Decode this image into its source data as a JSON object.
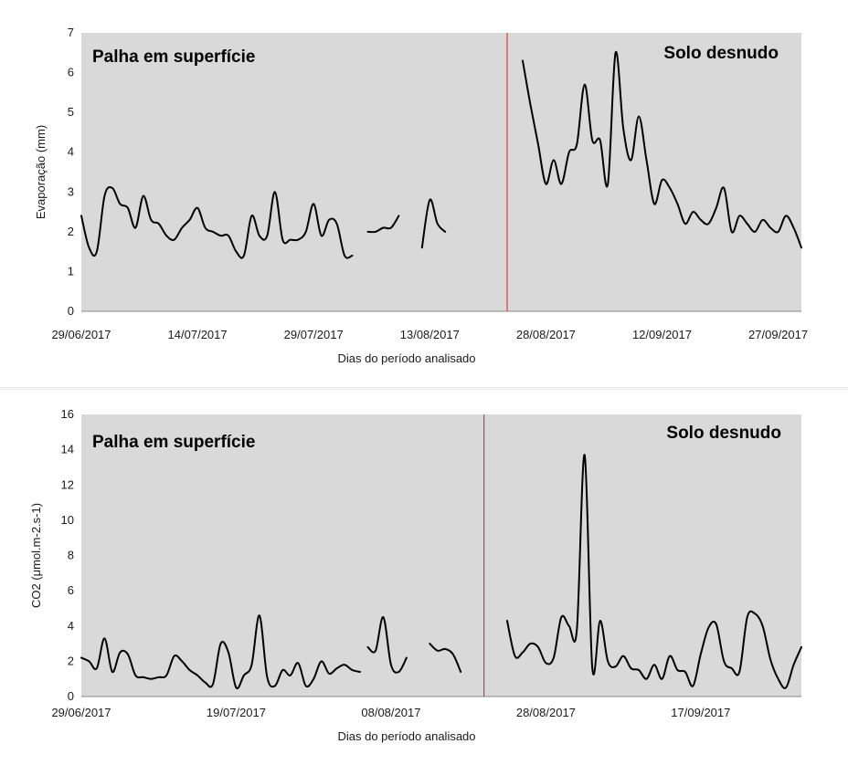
{
  "colors": {
    "plot_bg": "#d9d9d9",
    "line": "#000000",
    "divider": "#e03c3c",
    "axis": "#888888"
  },
  "chart_data": [
    {
      "type": "line",
      "ylabel": "Evaporação (mm)",
      "xlabel": "Dias do período analisado",
      "ylim": [
        0,
        7
      ],
      "yticks": [
        0,
        1,
        2,
        3,
        4,
        5,
        6,
        7
      ],
      "xlim": [
        "2017-06-29",
        "2017-09-30"
      ],
      "xtick_dates": [
        "2017-06-29",
        "2017-07-14",
        "2017-07-29",
        "2017-08-13",
        "2017-08-28",
        "2017-09-12",
        "2017-09-27"
      ],
      "xtick_labels": [
        "29/06/2017",
        "14/07/2017",
        "29/07/2017",
        "13/08/2017",
        "28/08/2017",
        "12/09/2017",
        "27/09/2017"
      ],
      "divider_date": "2017-08-23",
      "regions": {
        "left": "Palha em superfície",
        "right": "Solo desnudo"
      },
      "grid": false,
      "legend": "none",
      "segments": [
        {
          "x": [
            "2017-06-29",
            "2017-06-30",
            "2017-07-01",
            "2017-07-02",
            "2017-07-03",
            "2017-07-04",
            "2017-07-05",
            "2017-07-06",
            "2017-07-07",
            "2017-07-08",
            "2017-07-09",
            "2017-07-10",
            "2017-07-11",
            "2017-07-12",
            "2017-07-13",
            "2017-07-14",
            "2017-07-15",
            "2017-07-16",
            "2017-07-17",
            "2017-07-18",
            "2017-07-19",
            "2017-07-20",
            "2017-07-21",
            "2017-07-22",
            "2017-07-23",
            "2017-07-24",
            "2017-07-25",
            "2017-07-26",
            "2017-07-27",
            "2017-07-28",
            "2017-07-29",
            "2017-07-30",
            "2017-07-31",
            "2017-08-01",
            "2017-08-02",
            "2017-08-03"
          ],
          "y": [
            2.4,
            1.6,
            1.5,
            2.9,
            3.1,
            2.7,
            2.6,
            2.1,
            2.9,
            2.3,
            2.2,
            1.9,
            1.8,
            2.1,
            2.3,
            2.6,
            2.1,
            2.0,
            1.9,
            1.9,
            1.5,
            1.4,
            2.4,
            1.9,
            1.9,
            3.0,
            1.8,
            1.8,
            1.8,
            2.0,
            2.7,
            1.9,
            2.3,
            2.2,
            1.4,
            1.4
          ]
        },
        {
          "x": [
            "2017-08-05",
            "2017-08-06",
            "2017-08-07",
            "2017-08-08",
            "2017-08-09"
          ],
          "y": [
            2.0,
            2.0,
            2.1,
            2.1,
            2.4
          ]
        },
        {
          "x": [
            "2017-08-12",
            "2017-08-13",
            "2017-08-14",
            "2017-08-15"
          ],
          "y": [
            1.6,
            2.8,
            2.2,
            2.0
          ]
        },
        {
          "x": [
            "2017-08-25",
            "2017-08-26",
            "2017-08-27",
            "2017-08-28",
            "2017-08-29",
            "2017-08-30",
            "2017-08-31",
            "2017-09-01",
            "2017-09-02",
            "2017-09-03",
            "2017-09-04",
            "2017-09-05",
            "2017-09-06",
            "2017-09-07",
            "2017-09-08",
            "2017-09-09",
            "2017-09-10",
            "2017-09-11",
            "2017-09-12",
            "2017-09-13",
            "2017-09-14",
            "2017-09-15",
            "2017-09-16",
            "2017-09-17",
            "2017-09-18",
            "2017-09-19",
            "2017-09-20",
            "2017-09-21",
            "2017-09-22",
            "2017-09-23",
            "2017-09-24",
            "2017-09-25",
            "2017-09-26",
            "2017-09-27",
            "2017-09-28",
            "2017-09-29",
            "2017-09-30"
          ],
          "y": [
            6.3,
            5.2,
            4.2,
            3.2,
            3.8,
            3.2,
            4.0,
            4.2,
            5.7,
            4.3,
            4.3,
            3.2,
            6.5,
            4.6,
            3.8,
            4.9,
            3.8,
            2.7,
            3.3,
            3.1,
            2.7,
            2.2,
            2.5,
            2.3,
            2.2,
            2.6,
            3.1,
            2.0,
            2.4,
            2.2,
            2.0,
            2.3,
            2.1,
            2.0,
            2.4,
            2.1,
            1.6
          ]
        }
      ]
    },
    {
      "type": "line",
      "ylabel": "CO2 (μmol.m-2.s-1)",
      "xlabel": "Dias do período analisado",
      "ylim": [
        0,
        16
      ],
      "yticks": [
        0,
        2,
        4,
        6,
        8,
        10,
        12,
        14,
        16
      ],
      "xlim": [
        "2017-06-29",
        "2017-09-30"
      ],
      "xtick_dates": [
        "2017-06-29",
        "2017-07-19",
        "2017-08-08",
        "2017-08-28",
        "2017-09-17"
      ],
      "xtick_labels": [
        "29/06/2017",
        "19/07/2017",
        "08/08/2017",
        "28/08/2017",
        "17/09/2017"
      ],
      "divider_date": "2017-08-20",
      "regions": {
        "left": "Palha em superfície",
        "right": "Solo desnudo"
      },
      "grid": false,
      "legend": "none",
      "segments": [
        {
          "x": [
            "2017-06-29",
            "2017-06-30",
            "2017-07-01",
            "2017-07-02",
            "2017-07-03",
            "2017-07-04",
            "2017-07-05",
            "2017-07-06",
            "2017-07-07",
            "2017-07-08",
            "2017-07-09",
            "2017-07-10",
            "2017-07-11",
            "2017-07-12",
            "2017-07-13",
            "2017-07-14",
            "2017-07-15",
            "2017-07-16",
            "2017-07-17",
            "2017-07-18",
            "2017-07-19",
            "2017-07-20",
            "2017-07-21",
            "2017-07-22",
            "2017-07-23",
            "2017-07-24",
            "2017-07-25",
            "2017-07-26",
            "2017-07-27",
            "2017-07-28",
            "2017-07-29",
            "2017-07-30",
            "2017-07-31",
            "2017-08-01",
            "2017-08-02",
            "2017-08-03",
            "2017-08-04"
          ],
          "y": [
            2.2,
            2.0,
            1.6,
            3.3,
            1.4,
            2.5,
            2.4,
            1.2,
            1.1,
            1.0,
            1.1,
            1.2,
            2.3,
            2.0,
            1.5,
            1.2,
            0.8,
            0.7,
            3.0,
            2.5,
            0.5,
            1.2,
            1.8,
            4.6,
            1.1,
            0.6,
            1.5,
            1.2,
            1.9,
            0.6,
            1.0,
            2.0,
            1.3,
            1.6,
            1.8,
            1.5,
            1.4
          ]
        },
        {
          "x": [
            "2017-08-05",
            "2017-08-06",
            "2017-08-07",
            "2017-08-08",
            "2017-08-09",
            "2017-08-10"
          ],
          "y": [
            2.8,
            2.6,
            4.5,
            1.8,
            1.4,
            2.2
          ]
        },
        {
          "x": [
            "2017-08-13",
            "2017-08-14",
            "2017-08-15",
            "2017-08-16",
            "2017-08-17"
          ],
          "y": [
            3.0,
            2.6,
            2.7,
            2.4,
            1.4
          ]
        },
        {
          "x": [
            "2017-08-23",
            "2017-08-24",
            "2017-08-25",
            "2017-08-26",
            "2017-08-27",
            "2017-08-28",
            "2017-08-29",
            "2017-08-30",
            "2017-08-31",
            "2017-09-01",
            "2017-09-02",
            "2017-09-03",
            "2017-09-04",
            "2017-09-05",
            "2017-09-06",
            "2017-09-07",
            "2017-09-08",
            "2017-09-09",
            "2017-09-10",
            "2017-09-11",
            "2017-09-12",
            "2017-09-13",
            "2017-09-14",
            "2017-09-15",
            "2017-09-16",
            "2017-09-17",
            "2017-09-18",
            "2017-09-19",
            "2017-09-20",
            "2017-09-21",
            "2017-09-22",
            "2017-09-23",
            "2017-09-24",
            "2017-09-25",
            "2017-09-26",
            "2017-09-27",
            "2017-09-28",
            "2017-09-29",
            "2017-09-30"
          ],
          "y": [
            4.3,
            2.3,
            2.5,
            3.0,
            2.8,
            1.9,
            2.2,
            4.5,
            4.0,
            3.8,
            13.7,
            1.6,
            4.3,
            2.0,
            1.7,
            2.3,
            1.6,
            1.5,
            1.0,
            1.8,
            1.0,
            2.3,
            1.5,
            1.4,
            0.6,
            2.4,
            3.9,
            4.1,
            2.0,
            1.6,
            1.4,
            4.5,
            4.7,
            4.0,
            2.1,
            1.0,
            0.5,
            1.8,
            2.8
          ]
        }
      ]
    }
  ]
}
